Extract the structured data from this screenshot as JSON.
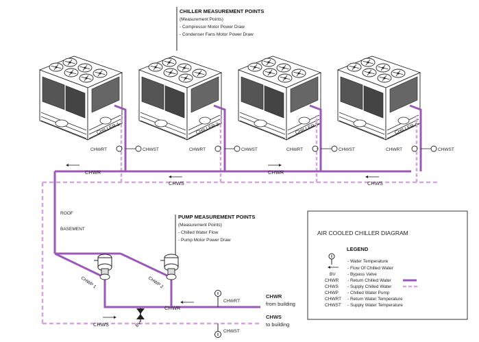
{
  "colors": {
    "return_line": "#9b59b6",
    "supply_line": "#d5a6e0",
    "equipment_stroke": "#222222",
    "background": "#ffffff"
  },
  "chiller_points": {
    "title": "CHILLER MEASUREMENT POINTS",
    "subtitle": "(Measurement Points)",
    "items": [
      "- Compressor Motor Power Draw",
      "- Condenser Fans Motor Power Draw"
    ]
  },
  "pump_points": {
    "title": "PUMP MEASUREMENT POINTS",
    "subtitle": "(Measurement Points)",
    "items": [
      "- Chilled Water Flow",
      "- Pump Motor Power Draw"
    ]
  },
  "chillers": [
    {
      "label": "CHILLER 1",
      "chwrt": "CHWRT",
      "chwst": "CHWST"
    },
    {
      "label": "CHILLER 2",
      "chwrt": "CHWRT",
      "chwst": "CHWST"
    },
    {
      "label": "CHILLER 3",
      "chwrt": "CHWRT",
      "chwst": "CHWST"
    },
    {
      "label": "CHILLER 4",
      "chwrt": "CHWRT",
      "chwst": "CHWST"
    }
  ],
  "header_labels": {
    "chwr": "CHWR",
    "chws": "CHWS"
  },
  "zones": {
    "roof": "ROOF",
    "basement": "BASEMENT"
  },
  "pumps": {
    "pump1": "CHWP 1",
    "pump2": "CHWP 2",
    "bypass": "BV"
  },
  "building": {
    "chwrt": "CHWRT",
    "chwst": "CHWST",
    "chwr": "CHWR",
    "chwr_from": "from building",
    "chws": "CHWS",
    "chws_to": "to building"
  },
  "diagram_title": "AIR COOLED CHILLER DIAGRAM",
  "legend": {
    "title": "LEGEND",
    "rows": [
      {
        "key": "",
        "desc": "- Water Temperature",
        "icon": "thermometer-icon"
      },
      {
        "key": "",
        "desc": "- Flow Of Chilled Water",
        "icon": "arrow-left-icon"
      },
      {
        "key": "BV",
        "desc": "- Bypass Valve",
        "icon": ""
      },
      {
        "key": "CHWR",
        "desc": "- Return Chilled Water",
        "icon": "solid-line"
      },
      {
        "key": "CHWS",
        "desc": "- Supply Chilled Water",
        "icon": "dashed-line"
      },
      {
        "key": "CHWP",
        "desc": "- Chilled Water Pump",
        "icon": ""
      },
      {
        "key": "CHWRT",
        "desc": "- Return Water Temperature",
        "icon": ""
      },
      {
        "key": "CHWST",
        "desc": "- Supply Water Temperature",
        "icon": ""
      }
    ]
  }
}
